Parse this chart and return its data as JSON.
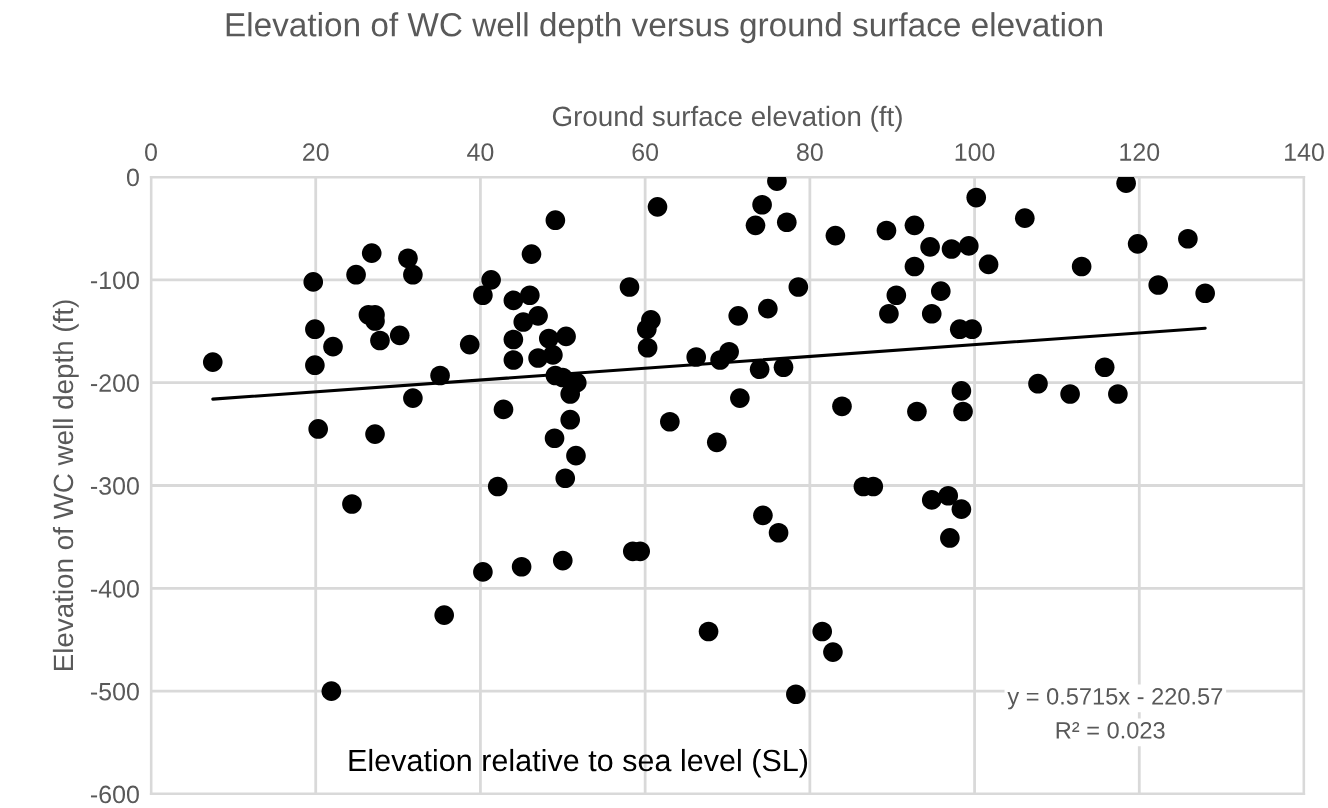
{
  "chart_data": {
    "type": "scatter",
    "title": "Elevation of WC well depth versus ground surface elevation",
    "xlabel": "Ground surface elevation (ft)",
    "ylabel": "Elevation of WC well depth (ft)",
    "annotations": [
      "y = 0.5715x - 220.57",
      "R² = 0.023",
      "Elevation relative to sea level (SL)"
    ],
    "series": [
      {
        "color": "#000000",
        "marker": "circle",
        "x": [
          7.5,
          19.7,
          19.9,
          19.9,
          20.3,
          22.1,
          24.9,
          26.8,
          26.4,
          27.2,
          27.2,
          27.8,
          27.2,
          24.4,
          30.2,
          31.2,
          31.8,
          31.8,
          35.1,
          35.6,
          38.7,
          40.3,
          41.3,
          40.3,
          42.8,
          42.1,
          44.0,
          44.0,
          44.0,
          45.0,
          45.2,
          46.2,
          46.0,
          47.0,
          47.0,
          48.3,
          48.8,
          49.1,
          50.4,
          49.1,
          50.0,
          51.7,
          50.9,
          50.9,
          49.0,
          51.6,
          50.3,
          50.0,
          58.1,
          60.2,
          60.7,
          60.3,
          61.5,
          63.0,
          58.5,
          59.4,
          66.2,
          69.1,
          68.7,
          67.7,
          70.2,
          76.0,
          74.2,
          73.4,
          77.2,
          71.3,
          74.9,
          78.6,
          73.9,
          76.8,
          71.5,
          83.1,
          83.9,
          74.3,
          76.2,
          86.5,
          87.7,
          81.5,
          82.8,
          89.3,
          92.7,
          94.6,
          92.7,
          97.2,
          99.3,
          100.2,
          101.7,
          90.5,
          89.6,
          95.9,
          94.8,
          98.2,
          99.7,
          98.4,
          98.6,
          93.0,
          94.8,
          96.8,
          98.4,
          97.0,
          106.1,
          107.7,
          111.6,
          113.0,
          115.8,
          117.4,
          118.4,
          119.8,
          122.3,
          125.9,
          128.0,
          21.9,
          78.3
        ],
        "values": [
          -180,
          -102,
          -148,
          -183,
          -245,
          -165,
          -95,
          -74,
          -134,
          -134,
          -140,
          -159,
          -250,
          -318,
          -154,
          -79,
          -95,
          -215,
          -193,
          -426,
          -163,
          -115,
          -100,
          -384,
          -226,
          -301,
          -120,
          -158,
          -178,
          -379,
          -141,
          -75,
          -115,
          -135,
          -176,
          -157,
          -173,
          -42,
          -155,
          -193,
          -195,
          -200,
          -211,
          -236,
          -254,
          -271,
          -293,
          -373,
          -107,
          -148,
          -139,
          -166,
          -29,
          -238,
          -364,
          -364,
          -175,
          -178,
          -258,
          -442,
          -170,
          -4,
          -27,
          -47,
          -44,
          -135,
          -128,
          -107,
          -187,
          -185,
          -215,
          -57,
          -223,
          -329,
          -346,
          -301,
          -301,
          -442,
          -462,
          -52,
          -47,
          -68,
          -87,
          -70,
          -67,
          -20,
          -85,
          -115,
          -133,
          -111,
          -133,
          -148,
          -148,
          -208,
          -228,
          -228,
          -314,
          -310,
          -323,
          -351,
          -40,
          -201,
          -211,
          -87,
          -185,
          -211,
          -6,
          -65,
          -105,
          -60,
          -113,
          -500,
          -503
        ]
      },
      {
        "type": "line",
        "color": "#000000",
        "line_style": "solid",
        "marker": "none",
        "x": [
          7.5,
          128.0
        ],
        "values": [
          -216,
          -147
        ]
      }
    ],
    "xlim": [
      0,
      140
    ],
    "xticks": [
      0,
      20,
      40,
      60,
      80,
      100,
      120,
      140
    ],
    "ylim": [
      -600,
      0
    ],
    "yticks": [
      -600,
      -500,
      -400,
      -300,
      -200,
      -100,
      0
    ],
    "grid": true,
    "legend": false
  }
}
